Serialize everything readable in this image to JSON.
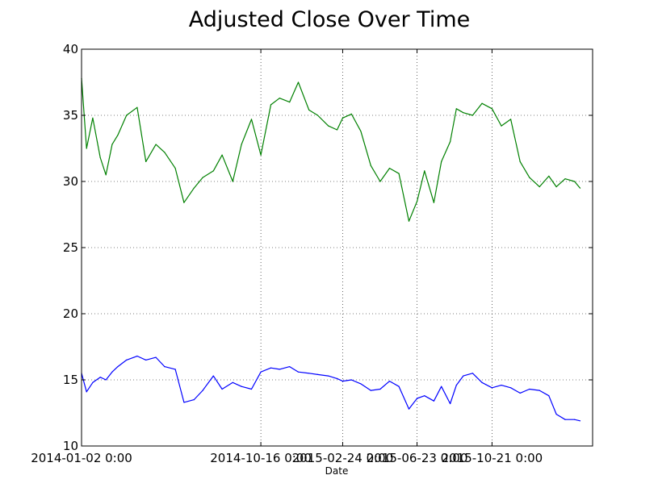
{
  "chart_data": {
    "type": "line",
    "title": "Adjusted Close Over Time",
    "xlabel": "Date",
    "ylabel": "",
    "ylim": [
      10,
      40
    ],
    "yticks": [
      10,
      15,
      20,
      25,
      30,
      35,
      40
    ],
    "xlim": [
      "2014-01-02",
      "2016-03-30"
    ],
    "xticks": [
      "2014-01-02 0:00",
      "2014-10-16 0:00",
      "2015-02-24 0:00",
      "2015-06-23 0:00",
      "2015-10-21 0:00"
    ],
    "grid": true,
    "legend": "none",
    "series": [
      {
        "color": "#008000",
        "x": [
          "2014-01-02",
          "2014-01-10",
          "2014-01-20",
          "2014-02-01",
          "2014-02-10",
          "2014-02-20",
          "2014-03-01",
          "2014-03-15",
          "2014-04-01",
          "2014-04-15",
          "2014-05-01",
          "2014-05-15",
          "2014-06-01",
          "2014-06-15",
          "2014-07-01",
          "2014-07-15",
          "2014-08-01",
          "2014-08-15",
          "2014-09-01",
          "2014-09-15",
          "2014-10-01",
          "2014-10-16",
          "2014-11-01",
          "2014-11-15",
          "2014-12-01",
          "2014-12-15",
          "2015-01-01",
          "2015-01-15",
          "2015-02-01",
          "2015-02-15",
          "2015-02-24",
          "2015-03-10",
          "2015-03-25",
          "2015-04-10",
          "2015-04-25",
          "2015-05-10",
          "2015-05-25",
          "2015-06-10",
          "2015-06-23",
          "2015-07-05",
          "2015-07-20",
          "2015-08-01",
          "2015-08-15",
          "2015-08-25",
          "2015-09-05",
          "2015-09-20",
          "2015-10-05",
          "2015-10-21",
          "2015-11-05",
          "2015-11-20",
          "2015-12-05",
          "2015-12-20",
          "2016-01-05",
          "2016-01-20",
          "2016-02-01",
          "2016-02-15",
          "2016-03-01",
          "2016-03-10"
        ],
        "values": [
          37.8,
          32.5,
          34.8,
          31.8,
          30.5,
          32.8,
          33.5,
          35.0,
          35.6,
          31.5,
          32.8,
          32.2,
          31.0,
          28.4,
          29.5,
          30.3,
          30.8,
          32.0,
          30.0,
          32.8,
          34.7,
          32.0,
          35.8,
          36.3,
          36.0,
          37.5,
          35.4,
          35.0,
          34.2,
          33.9,
          34.8,
          35.1,
          33.8,
          31.2,
          30.0,
          31.0,
          30.6,
          27.0,
          28.5,
          30.8,
          28.4,
          31.5,
          33.0,
          35.5,
          35.2,
          35.0,
          35.9,
          35.5,
          34.2,
          34.7,
          31.5,
          30.3,
          29.6,
          30.4,
          29.6,
          30.2,
          30.0,
          29.5
        ]
      },
      {
        "color": "#0000ff",
        "x": [
          "2014-01-02",
          "2014-01-10",
          "2014-01-20",
          "2014-02-01",
          "2014-02-10",
          "2014-02-20",
          "2014-03-01",
          "2014-03-15",
          "2014-04-01",
          "2014-04-15",
          "2014-05-01",
          "2014-05-15",
          "2014-06-01",
          "2014-06-15",
          "2014-07-01",
          "2014-07-15",
          "2014-08-01",
          "2014-08-15",
          "2014-09-01",
          "2014-09-15",
          "2014-10-01",
          "2014-10-16",
          "2014-11-01",
          "2014-11-15",
          "2014-12-01",
          "2014-12-15",
          "2015-01-01",
          "2015-01-15",
          "2015-02-01",
          "2015-02-15",
          "2015-02-24",
          "2015-03-10",
          "2015-03-25",
          "2015-04-10",
          "2015-04-25",
          "2015-05-10",
          "2015-05-25",
          "2015-06-10",
          "2015-06-23",
          "2015-07-05",
          "2015-07-20",
          "2015-08-01",
          "2015-08-15",
          "2015-08-25",
          "2015-09-05",
          "2015-09-20",
          "2015-10-05",
          "2015-10-21",
          "2015-11-05",
          "2015-11-20",
          "2015-12-05",
          "2015-12-20",
          "2016-01-05",
          "2016-01-20",
          "2016-02-01",
          "2016-02-15",
          "2016-03-01",
          "2016-03-10"
        ],
        "values": [
          15.5,
          14.1,
          14.8,
          15.2,
          15.0,
          15.6,
          16.0,
          16.5,
          16.8,
          16.5,
          16.7,
          16.0,
          15.8,
          13.3,
          13.5,
          14.2,
          15.3,
          14.3,
          14.8,
          14.5,
          14.3,
          15.6,
          15.9,
          15.8,
          16.0,
          15.6,
          15.5,
          15.4,
          15.3,
          15.1,
          14.9,
          15.0,
          14.7,
          14.2,
          14.3,
          14.9,
          14.5,
          12.8,
          13.6,
          13.8,
          13.4,
          14.5,
          13.2,
          14.6,
          15.3,
          15.5,
          14.8,
          14.4,
          14.6,
          14.4,
          14.0,
          14.3,
          14.2,
          13.8,
          12.4,
          12.0,
          12.0,
          11.9
        ]
      }
    ]
  }
}
